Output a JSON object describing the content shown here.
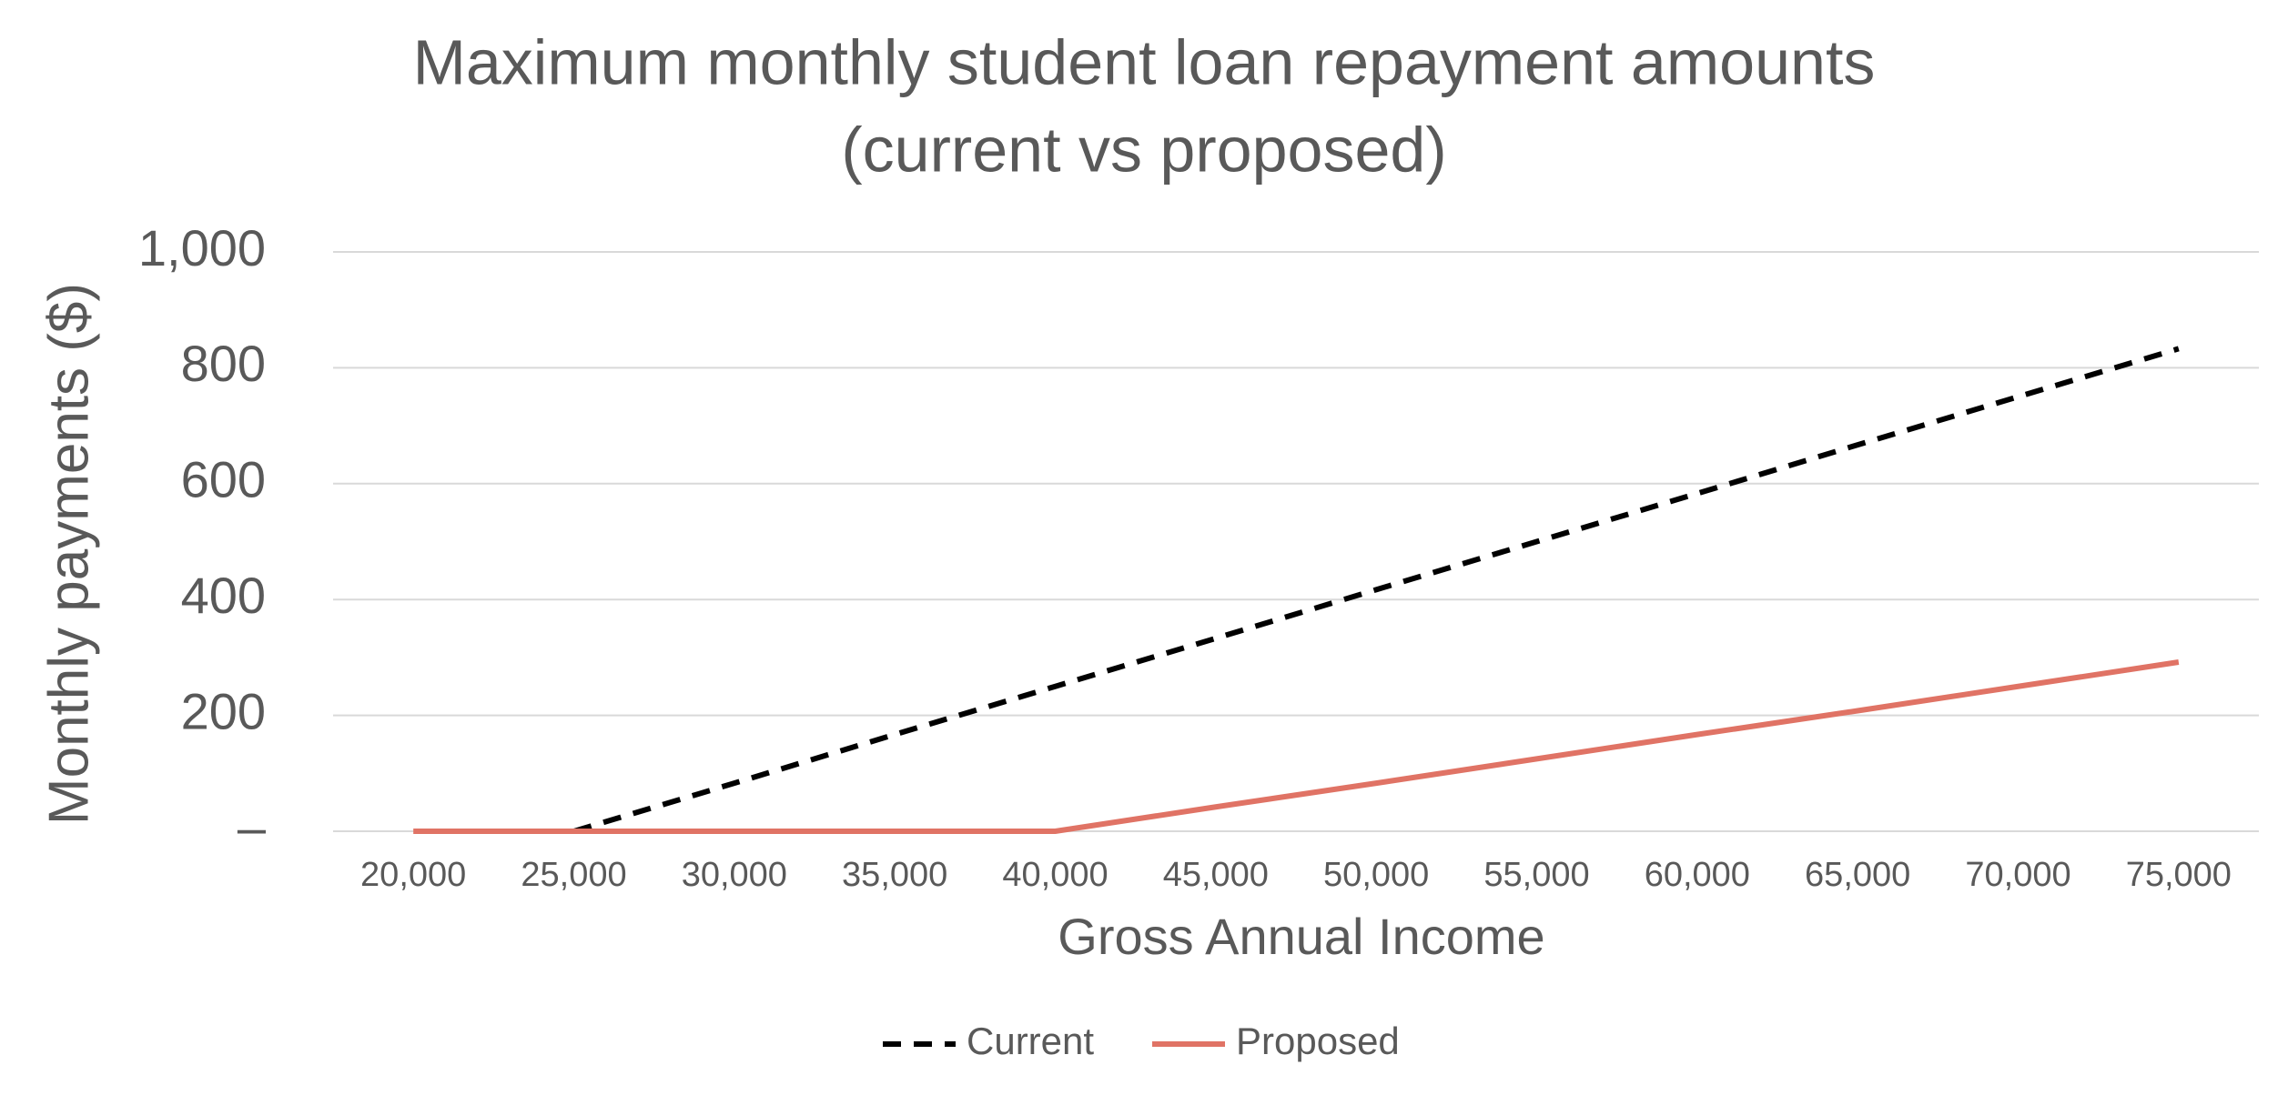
{
  "chart_data": {
    "type": "line",
    "title": [
      "Maximum monthly student loan repayment amounts",
      "(current vs proposed)"
    ],
    "x_label": "Gross Annual Income",
    "y_label": "Monthly payments ($)",
    "categories": [
      "20,000",
      "25,000",
      "30,000",
      "35,000",
      "40,000",
      "45,000",
      "50,000",
      "55,000",
      "60,000",
      "65,000",
      "70,000",
      "75,000"
    ],
    "series": [
      {
        "name": "Current",
        "color": "#000000",
        "dashed": true,
        "values": [
          null,
          0,
          83,
          167,
          250,
          333,
          417,
          500,
          583,
          667,
          750,
          833
        ]
      },
      {
        "name": "Proposed",
        "color": "#e07365",
        "dashed": false,
        "values": [
          0,
          0,
          0,
          0,
          0,
          42,
          83,
          125,
          167,
          208,
          250,
          292
        ]
      }
    ],
    "ylim": [
      0,
      1000
    ],
    "yticks": [
      {
        "value": 0,
        "label": "–"
      },
      200,
      400,
      600,
      800,
      {
        "value": 1000,
        "label": "1,000"
      }
    ],
    "grid": true,
    "legend": "bottom"
  }
}
